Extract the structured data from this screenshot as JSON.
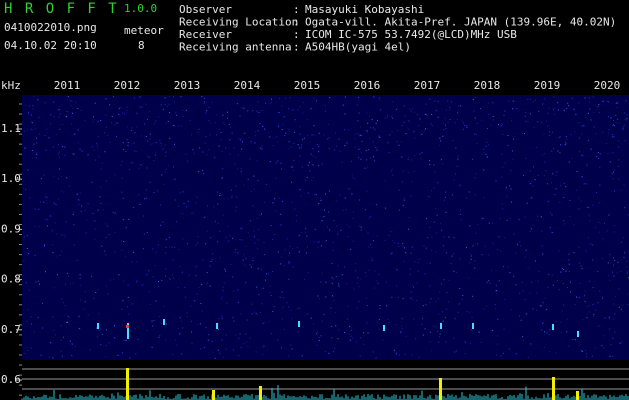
{
  "header": {
    "program": "H R O F F T",
    "version": "1.0.0",
    "file": "0410022010.png",
    "meteor_label": "meteor",
    "meteor_count": "8",
    "datetime": "04.10.02 20:10",
    "fields": [
      {
        "label": "Observer",
        "value": "Masayuki Kobayashi"
      },
      {
        "label": "Receiving Location",
        "value": "Ogata-vill. Akita-Pref. JAPAN (139.96E, 40.02N)"
      },
      {
        "label": "Receiver",
        "value": "ICOM IC-575 53.7492(@LCD)MHz USB"
      },
      {
        "label": "Receiving antenna",
        "value": "A504HB(yagi 4el)"
      }
    ],
    "separator": ":"
  },
  "spectrogram": {
    "unit": "kHz",
    "time_labels": [
      "2011",
      "2012",
      "2013",
      "2014",
      "2015",
      "2016",
      "2017",
      "2018",
      "2019",
      "2020"
    ],
    "freq_labels": [
      "1.1",
      "1.0",
      "0.9",
      "0.8",
      "0.7",
      "0.6"
    ]
  }
}
